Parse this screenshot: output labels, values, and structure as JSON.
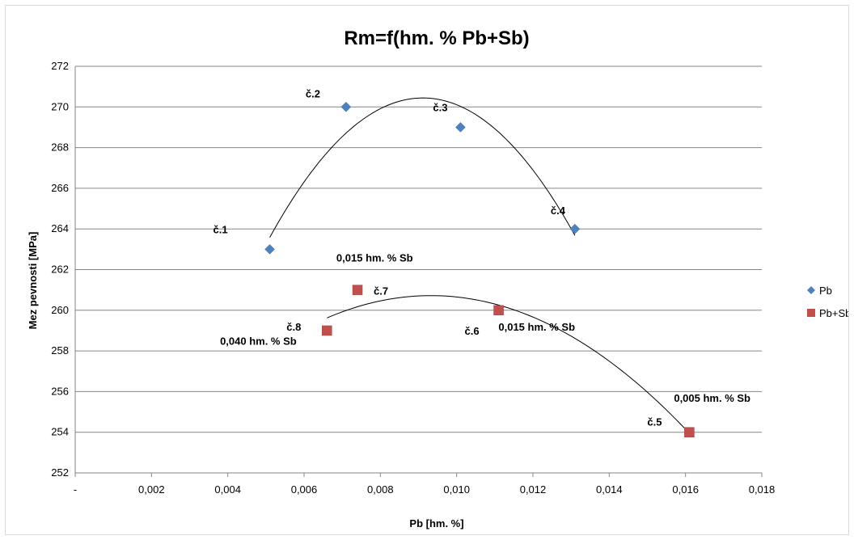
{
  "chart_data": {
    "type": "scatter",
    "title": "Rm=f(hm. % Pb+Sb)",
    "xlabel": "Pb [hm. %]",
    "ylabel": "Mez pevnosti [MPa]",
    "xlim": [
      0,
      0.018
    ],
    "ylim": [
      252,
      272
    ],
    "x_ticks": [
      "-",
      "0,002",
      "0,004",
      "0,006",
      "0,008",
      "0,010",
      "0,012",
      "0,014",
      "0,016",
      "0,018"
    ],
    "y_ticks": [
      "252",
      "254",
      "256",
      "258",
      "260",
      "262",
      "264",
      "266",
      "268",
      "270",
      "272"
    ],
    "grid": "horizontal",
    "legend": "right",
    "series": [
      {
        "name": "Pb",
        "color": "#4f81bd",
        "marker": "diamond",
        "x": [
          0.0051,
          0.0071,
          0.0101,
          0.0131
        ],
        "y": [
          263,
          270,
          269,
          264
        ],
        "point_labels": [
          "č.1",
          "č.2",
          "č.3",
          "č.4"
        ],
        "trendline": "polynomial"
      },
      {
        "name": "Pb+Sb",
        "color": "#c0504d",
        "marker": "square",
        "x": [
          0.0161,
          0.0111,
          0.0074,
          0.0066
        ],
        "y": [
          254,
          260,
          261,
          259
        ],
        "point_labels": [
          "č.5",
          "č.6",
          "č.7",
          "č.8"
        ],
        "trendline": "polynomial"
      }
    ],
    "annotations": [
      "0,015 hm. % Sb",
      "0,015 hm. % Sb",
      "0,040 hm. % Sb",
      "0,005 hm. % Sb"
    ]
  }
}
